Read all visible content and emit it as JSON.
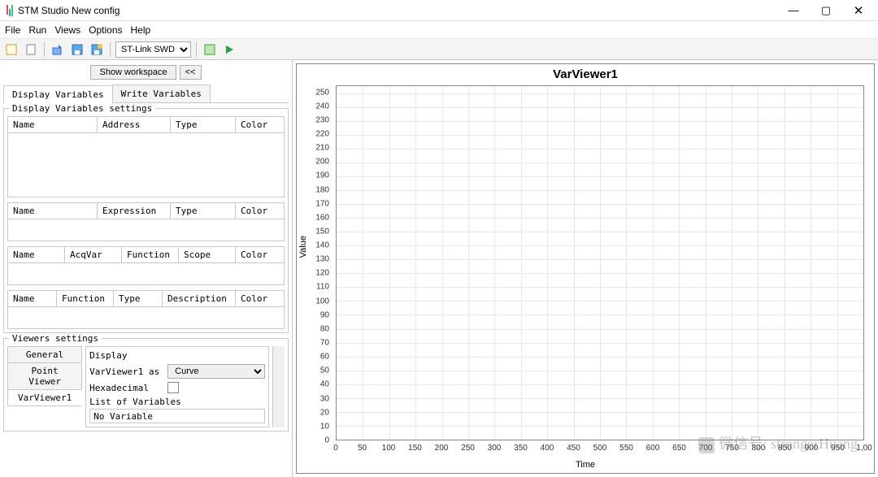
{
  "window": {
    "title": "STM Studio New config",
    "buttons": {
      "min": "—",
      "max": "▢",
      "close": "✕"
    }
  },
  "menu": {
    "items": [
      "File",
      "Run",
      "Views",
      "Options",
      "Help"
    ]
  },
  "toolbar": {
    "connector": "ST-Link SWD",
    "connector_options": [
      "ST-Link SWD"
    ]
  },
  "workspace": {
    "show_btn": "Show workspace",
    "collapse_btn": "<<"
  },
  "tabs": {
    "display": "Display Variables",
    "write": "Write Variables"
  },
  "display_vars": {
    "legend": "Display Variables settings",
    "table1": {
      "cols": [
        "Name",
        "Address",
        "Type",
        "Color"
      ],
      "height": 78
    },
    "table2": {
      "cols": [
        "Name",
        "Expression",
        "Type",
        "Color"
      ],
      "height": 26
    },
    "table3": {
      "cols": [
        "Name",
        "AcqVar",
        "Function",
        "Scope",
        "Color"
      ],
      "height": 26
    },
    "table4": {
      "cols": [
        "Name",
        "Function",
        "Type",
        "Description",
        "Color"
      ],
      "height": 26
    }
  },
  "viewers": {
    "legend": "Viewers settings",
    "side_tabs": [
      "General",
      "Point Viewer",
      "VarViewer1"
    ],
    "panel_title": "Display",
    "as_label": "VarViewer1 as",
    "as_value": "Curve",
    "hex_label": "Hexadecimal",
    "list_label": "List of Variables",
    "list_value": "No Variable"
  },
  "chart": {
    "title": "VarViewer1",
    "ylabel": "Value",
    "xlabel": "Time",
    "ylim": [
      0,
      255
    ],
    "ytick_step": 10,
    "xlim": [
      0,
      1000
    ],
    "xtick_step": 50,
    "grid_color": "#e8e8e8",
    "border_color": "#888888",
    "background": "#ffffff"
  },
  "watermark": "微信号: strongerHuang"
}
